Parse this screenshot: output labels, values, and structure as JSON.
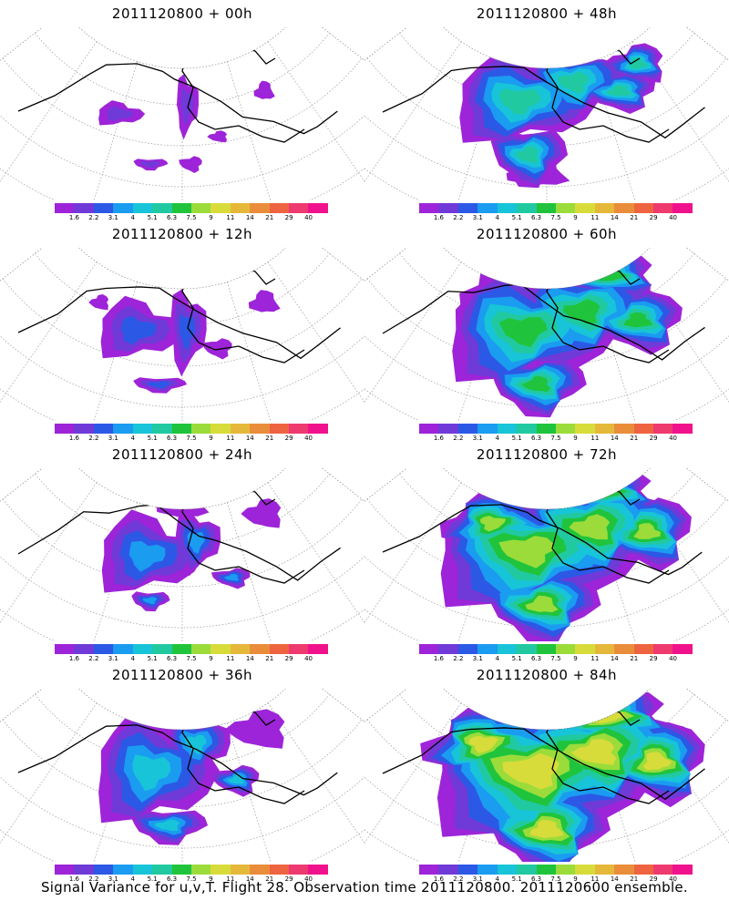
{
  "panels": [
    {
      "title": "2011120800 + 00h",
      "col": 0,
      "row": 0,
      "level": 0
    },
    {
      "title": "2011120800 + 12h",
      "col": 0,
      "row": 1,
      "level": 1
    },
    {
      "title": "2011120800 + 24h",
      "col": 0,
      "row": 2,
      "level": 2
    },
    {
      "title": "2011120800 + 36h",
      "col": 0,
      "row": 3,
      "level": 3
    },
    {
      "title": "2011120800 + 48h",
      "col": 1,
      "row": 0,
      "level": 4
    },
    {
      "title": "2011120800 + 60h",
      "col": 1,
      "row": 1,
      "level": 5
    },
    {
      "title": "2011120800 + 72h",
      "col": 1,
      "row": 2,
      "level": 6
    },
    {
      "title": "2011120800 + 84h",
      "col": 1,
      "row": 3,
      "level": 7
    }
  ],
  "colorbar": {
    "labels": [
      "1.6",
      "2.2",
      "3.1",
      "4",
      "5.1",
      "6.3",
      "7.5",
      "9",
      "11",
      "14",
      "21",
      "29",
      "40"
    ],
    "colors": [
      "#9d24d8",
      "#6f3ad8",
      "#2c58e6",
      "#1a9cf0",
      "#18c4d8",
      "#21c9a1",
      "#1fc43c",
      "#9bdc3a",
      "#d8dc3a",
      "#e6b83a",
      "#ea8d3a",
      "#ee6440",
      "#ee3a6e",
      "#f0128c"
    ]
  },
  "caption": "Signal Variance for u,v,T. Flight 28. Observation time 2011120800. 2011120600 ensemble."
}
